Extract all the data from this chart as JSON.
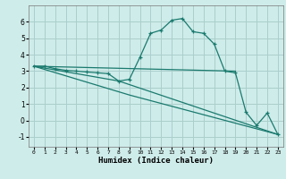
{
  "xlabel": "Humidex (Indice chaleur)",
  "xlim": [
    -0.5,
    23.5
  ],
  "ylim": [
    -1.6,
    7.0
  ],
  "yticks": [
    -1,
    0,
    1,
    2,
    3,
    4,
    5,
    6
  ],
  "xticks": [
    0,
    1,
    2,
    3,
    4,
    5,
    6,
    7,
    8,
    9,
    10,
    11,
    12,
    13,
    14,
    15,
    16,
    17,
    18,
    19,
    20,
    21,
    22,
    23
  ],
  "bg_color": "#ceecea",
  "grid_color": "#aacfcc",
  "line_color": "#1a7a6e",
  "line1_x": [
    0,
    1,
    2,
    3,
    4,
    5,
    6,
    7,
    8,
    9,
    10,
    11,
    12,
    13,
    14,
    15,
    16,
    17,
    18,
    19,
    20,
    21,
    22,
    23
  ],
  "line1_y": [
    3.3,
    3.3,
    3.15,
    3.05,
    3.0,
    2.95,
    2.9,
    2.85,
    2.4,
    2.5,
    3.85,
    5.3,
    5.5,
    6.1,
    6.2,
    5.4,
    5.3,
    4.65,
    3.0,
    2.9,
    0.5,
    -0.3,
    0.45,
    -0.85
  ],
  "line2_x": [
    0,
    19
  ],
  "line2_y": [
    3.3,
    3.0
  ],
  "line3_x": [
    0,
    8,
    23
  ],
  "line3_y": [
    3.3,
    2.4,
    -0.85
  ],
  "line4_x": [
    0,
    9,
    23
  ],
  "line4_y": [
    3.3,
    1.55,
    -0.85
  ]
}
